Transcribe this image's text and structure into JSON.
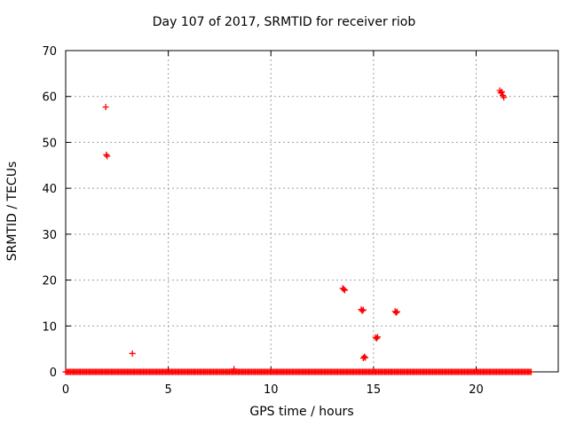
{
  "chart_data": {
    "type": "scatter",
    "title": "Day 107 of 2017, SRMTID for receiver riob",
    "xlabel": "GPS time / hours",
    "ylabel": "SRMTID / TECUs",
    "xlim": [
      0,
      24
    ],
    "ylim": [
      0,
      70
    ],
    "xticks": [
      0,
      5,
      10,
      15,
      20
    ],
    "yticks": [
      0,
      10,
      20,
      30,
      40,
      50,
      60,
      70
    ],
    "grid": true,
    "marker": "+",
    "color": "#ff0000",
    "series": [
      {
        "baseline": {
          "x_start": 0.0,
          "x_end": 22.7,
          "y": 0.0
        },
        "points": [
          {
            "x": 1.95,
            "y": 57.7
          },
          {
            "x": 1.98,
            "y": 47.3
          },
          {
            "x": 2.02,
            "y": 47.0
          },
          {
            "x": 3.25,
            "y": 4.0
          },
          {
            "x": 8.2,
            "y": 0.6
          },
          {
            "x": 13.5,
            "y": 18.2
          },
          {
            "x": 13.55,
            "y": 18.0
          },
          {
            "x": 13.6,
            "y": 17.8
          },
          {
            "x": 14.4,
            "y": 13.6
          },
          {
            "x": 14.45,
            "y": 13.3
          },
          {
            "x": 14.5,
            "y": 13.5
          },
          {
            "x": 14.5,
            "y": 3.0
          },
          {
            "x": 14.55,
            "y": 3.3
          },
          {
            "x": 14.6,
            "y": 3.1
          },
          {
            "x": 15.1,
            "y": 7.5
          },
          {
            "x": 15.15,
            "y": 7.3
          },
          {
            "x": 15.2,
            "y": 7.6
          },
          {
            "x": 16.05,
            "y": 13.2
          },
          {
            "x": 16.1,
            "y": 12.9
          },
          {
            "x": 16.15,
            "y": 13.1
          },
          {
            "x": 21.15,
            "y": 61.3
          },
          {
            "x": 21.2,
            "y": 60.8
          },
          {
            "x": 21.25,
            "y": 61.0
          },
          {
            "x": 21.3,
            "y": 60.2
          },
          {
            "x": 21.35,
            "y": 59.8
          }
        ]
      }
    ]
  }
}
